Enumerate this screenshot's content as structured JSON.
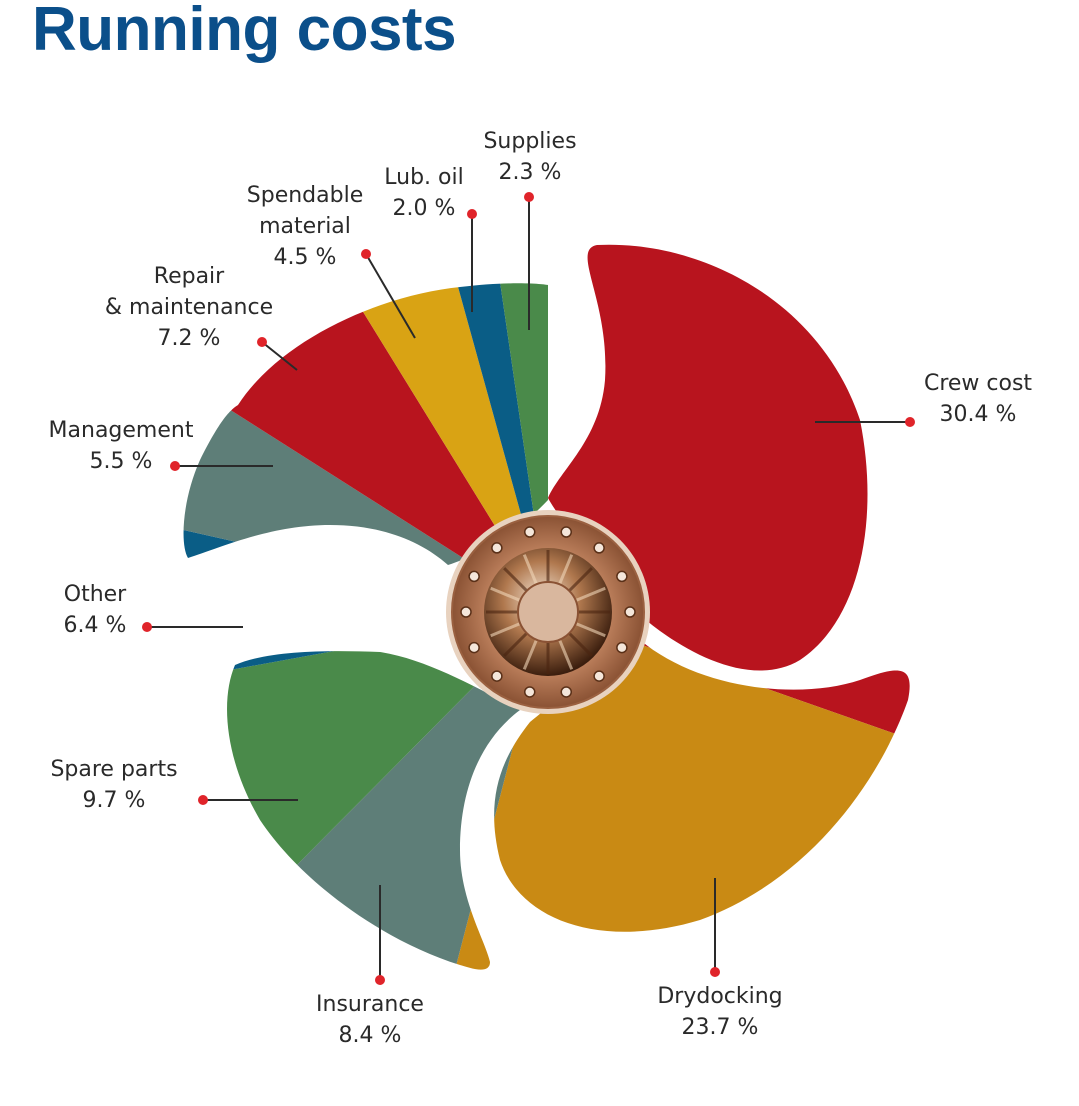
{
  "chart_data": {
    "type": "pie",
    "style": "propeller",
    "title": "Running costs",
    "unit": "%",
    "slices": [
      {
        "name": "Crew cost",
        "value": 30.4,
        "display": "30.4 %",
        "color": "#b8141e"
      },
      {
        "name": "Drydocking",
        "value": 23.7,
        "display": "23.7 %",
        "color": "#c98a14"
      },
      {
        "name": "Insurance",
        "value": 8.4,
        "display": "8.4 %",
        "color": "#5e7e78"
      },
      {
        "name": "Spare parts",
        "value": 9.7,
        "display": "9.7 %",
        "color": "#4a8a4a"
      },
      {
        "name": "Other",
        "value": 6.4,
        "display": "6.4 %",
        "color": "#0a5d86"
      },
      {
        "name": "Management",
        "value": 5.5,
        "display": "5.5 %",
        "color": "#5e7e78"
      },
      {
        "name": "Repair & maintenance",
        "value": 7.2,
        "display": "7.2 %",
        "color": "#b8141e"
      },
      {
        "name": "Spendable material",
        "value": 4.5,
        "display": "4.5 %",
        "color": "#d9a314"
      },
      {
        "name": "Lub. oil",
        "value": 2.0,
        "display": "2.0 %",
        "color": "#0a5d86"
      },
      {
        "name": "Supplies",
        "value": 2.3,
        "display": "2.3 %",
        "color": "#4a8a4a"
      }
    ],
    "label_lines": {
      "Crew cost": [
        "Crew cost",
        "30.4 %"
      ],
      "Drydocking": [
        "Drydocking",
        "23.7 %"
      ],
      "Insurance": [
        "Insurance",
        "8.4 %"
      ],
      "Spare parts": [
        "Spare parts",
        "9.7 %"
      ],
      "Other": [
        "Other",
        "6.4 %"
      ],
      "Management": [
        "Management",
        "5.5 %"
      ],
      "Repair & maintenance": [
        "Repair",
        "& maintenance",
        "7.2 %"
      ],
      "Spendable material": [
        "Spendable",
        "material",
        "4.5 %"
      ],
      "Lub. oil": [
        "Lub. oil",
        "2.0 %"
      ],
      "Supplies": [
        "Supplies",
        "2.3 %"
      ]
    },
    "colors": {
      "leader_dot": "#e0242a",
      "hub_copper": "#c98b66",
      "hub_dark": "#5a3018"
    }
  }
}
